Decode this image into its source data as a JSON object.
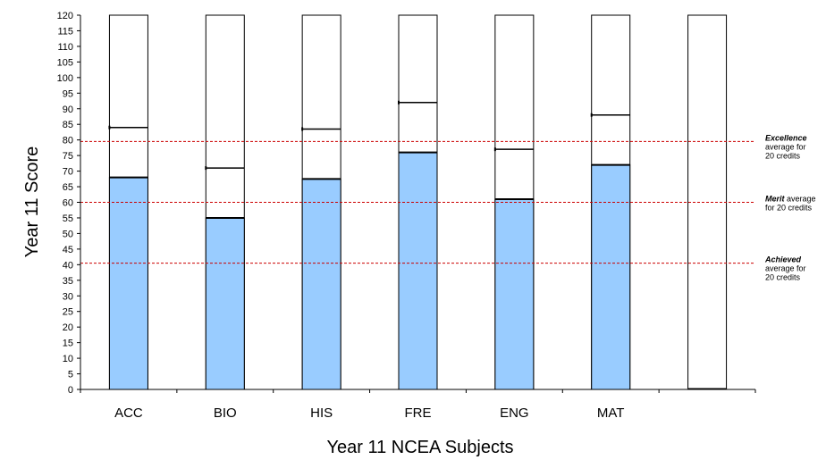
{
  "chart_data": {
    "type": "bar",
    "title": "",
    "xlabel": "Year 11 NCEA Subjects",
    "ylabel": "Year 11 Score",
    "ylim": [
      0,
      120
    ],
    "ytick_step": 5,
    "grid": false,
    "categories": [
      "ACC",
      "BIO",
      "HIS",
      "FRE",
      "ENG",
      "MAT",
      ""
    ],
    "series": [
      {
        "values": [
          68,
          55,
          67.5,
          76,
          61,
          72,
          0
        ]
      },
      {
        "values": [
          84,
          71,
          83.5,
          92,
          77,
          88,
          0
        ]
      }
    ],
    "fill_color": "#99ccff",
    "box_max": 120,
    "reference_lines": [
      {
        "value": 79.5,
        "label_bold": "Excellence",
        "label_rest": [
          "average for",
          "20 credits"
        ],
        "color": "#cc0000"
      },
      {
        "value": 60,
        "label_bold": "Merit",
        "label_rest": [
          "average",
          "for 20 credits"
        ],
        "color": "#cc0000"
      },
      {
        "value": 40.5,
        "label_bold": "Achieved",
        "label_rest": [
          "average for",
          "20 credits"
        ],
        "color": "#cc0000"
      }
    ]
  }
}
